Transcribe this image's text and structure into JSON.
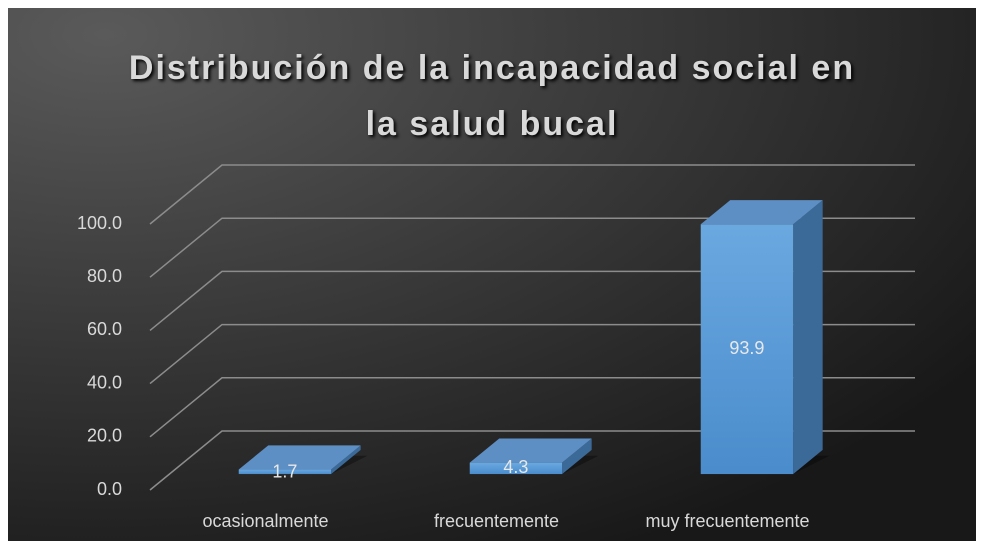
{
  "chart_data": {
    "type": "bar3d",
    "title": "Distribución de la incapacidad social en la salud bucal",
    "categories": [
      "ocasionalmente",
      "frecuentemente",
      "muy frecuentemente"
    ],
    "values": [
      1.7,
      4.3,
      93.9
    ],
    "color": "#5b9bd5",
    "ylim": [
      0,
      100
    ],
    "yticks": [
      {
        "value": 0,
        "label": "0.0"
      },
      {
        "value": 20,
        "label": "20.0"
      },
      {
        "value": 40,
        "label": "40.0"
      },
      {
        "value": 60,
        "label": "60.0"
      },
      {
        "value": 80,
        "label": "80.0"
      },
      {
        "value": 100,
        "label": "100.0"
      }
    ],
    "grid": true
  }
}
